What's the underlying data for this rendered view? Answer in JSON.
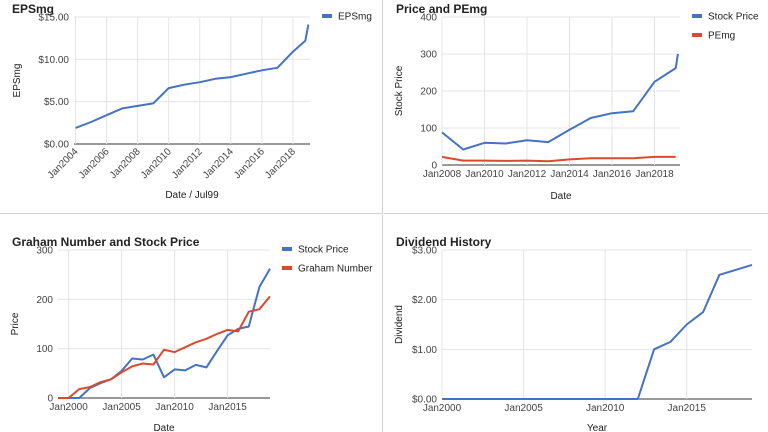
{
  "colors": {
    "blue": "#4472c4",
    "red": "#db4a2b",
    "grid": "#e4e4e4",
    "axis": "#333333"
  },
  "chart_data": [
    {
      "id": "eps",
      "type": "line",
      "title": "EPSmg",
      "xlabel": "Date / Jul99",
      "ylabel": "EPSmg",
      "xlim": [
        2003.9,
        2019.1
      ],
      "ylim": [
        0,
        15
      ],
      "x_ticks": [
        {
          "v": 2004,
          "label": "Jan2004"
        },
        {
          "v": 2006,
          "label": "Jan2006"
        },
        {
          "v": 2008,
          "label": "Jan2008"
        },
        {
          "v": 2010,
          "label": "Jan2010"
        },
        {
          "v": 2012,
          "label": "Jan2012"
        },
        {
          "v": 2014,
          "label": "Jan2014"
        },
        {
          "v": 2016,
          "label": "Jan2016"
        },
        {
          "v": 2018,
          "label": "Jan2018"
        }
      ],
      "x_tick_rotate": true,
      "y_ticks": [
        {
          "v": 0,
          "label": "$0.00"
        },
        {
          "v": 5,
          "label": "$5.00"
        },
        {
          "v": 10,
          "label": "$10.00"
        },
        {
          "v": 15,
          "label": "$15.00"
        }
      ],
      "legend": "right",
      "series": [
        {
          "name": "EPSmg",
          "color": "#4472c4",
          "x": [
            2004,
            2005,
            2006,
            2007,
            2008,
            2009,
            2010,
            2011,
            2012,
            2013,
            2014,
            2015,
            2016,
            2017,
            2018,
            2018.8,
            2019
          ],
          "y": [
            1.9,
            2.6,
            3.4,
            4.2,
            4.5,
            4.8,
            6.6,
            7.0,
            7.3,
            7.7,
            7.9,
            8.3,
            8.7,
            9.0,
            10.9,
            12.2,
            14.1
          ]
        }
      ]
    },
    {
      "id": "price_pe",
      "type": "line",
      "title": "Price and PEmg",
      "xlabel": "Date",
      "ylabel": "Stock Price",
      "xlim": [
        2008,
        2019.2
      ],
      "ylim": [
        0,
        400
      ],
      "x_ticks": [
        {
          "v": 2008,
          "label": "Jan2008"
        },
        {
          "v": 2010,
          "label": "Jan2010"
        },
        {
          "v": 2012,
          "label": "Jan2012"
        },
        {
          "v": 2014,
          "label": "Jan2014"
        },
        {
          "v": 2016,
          "label": "Jan2016"
        },
        {
          "v": 2018,
          "label": "Jan2018"
        }
      ],
      "x_tick_rotate": false,
      "y_ticks": [
        {
          "v": 0,
          "label": "0"
        },
        {
          "v": 100,
          "label": "100"
        },
        {
          "v": 200,
          "label": "200"
        },
        {
          "v": 300,
          "label": "300"
        },
        {
          "v": 400,
          "label": "400"
        }
      ],
      "legend": "right",
      "series": [
        {
          "name": "Stock Price",
          "color": "#4472c4",
          "x": [
            2008,
            2009,
            2010,
            2011,
            2012,
            2013,
            2014,
            2015,
            2016,
            2017,
            2018,
            2019,
            2019.1
          ],
          "y": [
            88,
            42,
            60,
            58,
            67,
            62,
            95,
            127,
            140,
            145,
            225,
            262,
            300
          ]
        },
        {
          "name": "PEmg",
          "color": "#db4a2b",
          "x": [
            2008,
            2009,
            2010,
            2011,
            2012,
            2013,
            2014,
            2015,
            2016,
            2017,
            2018,
            2019
          ],
          "y": [
            22,
            12,
            12,
            11,
            12,
            10,
            15,
            18,
            18,
            18,
            22,
            22
          ]
        }
      ]
    },
    {
      "id": "graham",
      "type": "line",
      "title": "Graham Number and Stock Price",
      "xlabel": "Date",
      "ylabel": "Price",
      "xlim": [
        1999,
        2019
      ],
      "ylim": [
        0,
        300
      ],
      "x_ticks": [
        {
          "v": 2000,
          "label": "Jan2000"
        },
        {
          "v": 2005,
          "label": "Jan2005"
        },
        {
          "v": 2010,
          "label": "Jan2010"
        },
        {
          "v": 2015,
          "label": "Jan2015"
        }
      ],
      "x_tick_rotate": false,
      "y_ticks": [
        {
          "v": 0,
          "label": "0"
        },
        {
          "v": 100,
          "label": "100"
        },
        {
          "v": 200,
          "label": "200"
        },
        {
          "v": 300,
          "label": "300"
        }
      ],
      "legend": "right",
      "series": [
        {
          "name": "Stock Price",
          "color": "#4472c4",
          "x": [
            1999,
            2000,
            2001,
            2002,
            2003,
            2004,
            2005,
            2006,
            2007,
            2008,
            2009,
            2010,
            2011,
            2012,
            2013,
            2014,
            2015,
            2016,
            2017,
            2018,
            2019
          ],
          "y": [
            0,
            0,
            0,
            20,
            30,
            38,
            55,
            80,
            78,
            88,
            42,
            58,
            56,
            67,
            62,
            95,
            127,
            140,
            145,
            225,
            262
          ]
        },
        {
          "name": "Graham Number",
          "color": "#db4a2b",
          "x": [
            1999,
            2000,
            2001,
            2002,
            2003,
            2004,
            2005,
            2006,
            2007,
            2008,
            2009,
            2010,
            2011,
            2012,
            2013,
            2014,
            2015,
            2016,
            2017,
            2018,
            2019
          ],
          "y": [
            0,
            0,
            18,
            22,
            32,
            38,
            52,
            64,
            70,
            68,
            98,
            93,
            103,
            113,
            120,
            130,
            138,
            135,
            175,
            180,
            206
          ]
        }
      ]
    },
    {
      "id": "dividend",
      "type": "line",
      "title": "Dividend History",
      "xlabel": "Year",
      "ylabel": "Dividend",
      "xlim": [
        2000,
        2019
      ],
      "ylim": [
        0,
        3
      ],
      "x_ticks": [
        {
          "v": 2000,
          "label": "Jan2000"
        },
        {
          "v": 2005,
          "label": "Jan2005"
        },
        {
          "v": 2010,
          "label": "Jan2010"
        },
        {
          "v": 2015,
          "label": "Jan2015"
        }
      ],
      "x_tick_rotate": false,
      "y_ticks": [
        {
          "v": 0,
          "label": "$0.00"
        },
        {
          "v": 1,
          "label": "$1.00"
        },
        {
          "v": 2,
          "label": "$2.00"
        },
        {
          "v": 3,
          "label": "$3.00"
        }
      ],
      "legend": "none",
      "series": [
        {
          "name": "",
          "color": "#4472c4",
          "x": [
            2000,
            2001,
            2002,
            2003,
            2004,
            2005,
            2006,
            2007,
            2008,
            2009,
            2010,
            2011,
            2012,
            2013,
            2014,
            2015,
            2016,
            2017,
            2018,
            2019
          ],
          "y": [
            0,
            0,
            0,
            0,
            0,
            0,
            0,
            0,
            0,
            0,
            0,
            0,
            0,
            1.0,
            1.15,
            1.5,
            1.75,
            2.5,
            2.6,
            2.7
          ]
        }
      ]
    }
  ]
}
